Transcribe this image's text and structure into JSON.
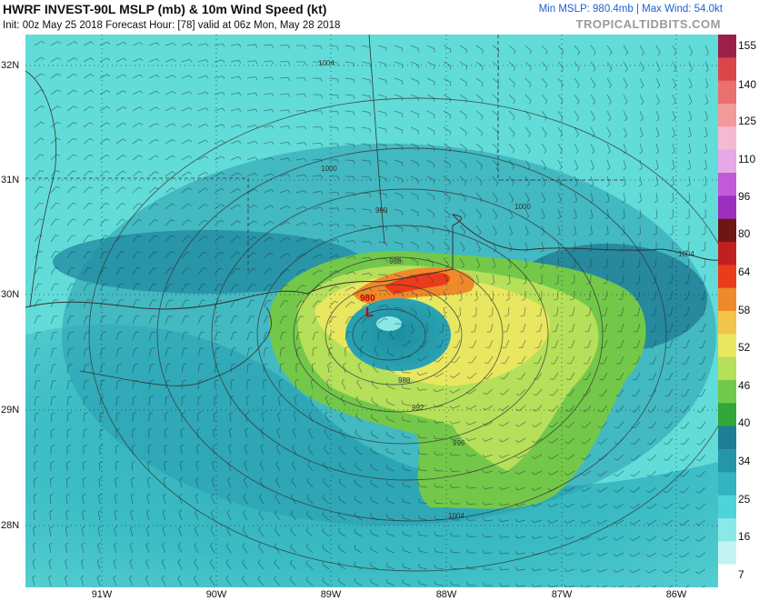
{
  "header": {
    "title": "HWRF INVEST-90L MSLP (mb) & 10m Wind Speed (kt)",
    "subtitle": "Init: 00z May 25 2018   Forecast Hour: [78]   valid at 06z Mon, May 28 2018",
    "stats": "Min MSLP: 980.4mb | Max Wind: 54.0kt",
    "brand": "TROPICALTIDBITS.COM"
  },
  "map": {
    "lat_labels": [
      "32N",
      "31N",
      "30N",
      "29N",
      "28N"
    ],
    "lon_labels": [
      "91W",
      "90W",
      "89W",
      "88W",
      "87W",
      "86W"
    ],
    "low_marker": "L",
    "low_pressure_value": "980",
    "isobar_labels": [
      "1004",
      "1000",
      "980",
      "988",
      "996",
      "1000",
      "1004",
      "1004",
      "992",
      "988"
    ]
  },
  "colorbar": {
    "unit": "kt",
    "ticks": [
      "155",
      "140",
      "125",
      "110",
      "96",
      "80",
      "64",
      "58",
      "52",
      "46",
      "40",
      "34",
      "25",
      "16",
      "7"
    ],
    "colors": [
      "#9c1f4a",
      "#d8464a",
      "#ea6f6f",
      "#f29a9a",
      "#f5b9d0",
      "#e6a8e6",
      "#c15ad6",
      "#9c2ec0",
      "#6e1616",
      "#c02020",
      "#ea3c1a",
      "#ee8a2a",
      "#f2c44a",
      "#e9e760",
      "#b6df5a",
      "#72c84a",
      "#33a63a",
      "#1f7d95",
      "#2596aa",
      "#34b3c0",
      "#4ed4d8",
      "#8ae8e6",
      "#c4f4f2",
      "#ffffff"
    ]
  }
}
